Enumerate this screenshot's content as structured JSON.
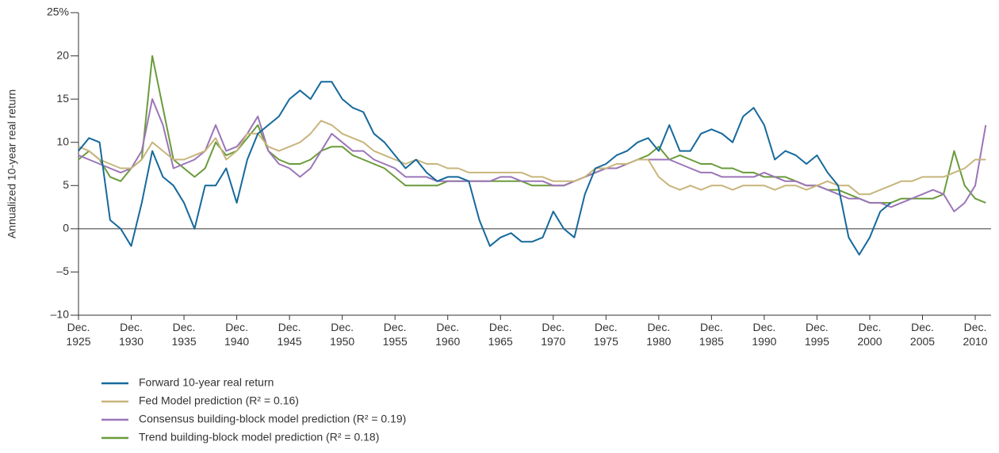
{
  "chart_data": {
    "type": "line",
    "y_label": "Annualized 10-year real return",
    "x": [
      1925,
      1926,
      1927,
      1928,
      1929,
      1930,
      1931,
      1932,
      1933,
      1934,
      1935,
      1936,
      1937,
      1938,
      1939,
      1940,
      1941,
      1942,
      1943,
      1944,
      1945,
      1946,
      1947,
      1948,
      1949,
      1950,
      1951,
      1952,
      1953,
      1954,
      1955,
      1956,
      1957,
      1958,
      1959,
      1960,
      1961,
      1962,
      1963,
      1964,
      1965,
      1966,
      1967,
      1968,
      1969,
      1970,
      1971,
      1972,
      1973,
      1974,
      1975,
      1976,
      1977,
      1978,
      1979,
      1980,
      1981,
      1982,
      1983,
      1984,
      1985,
      1986,
      1987,
      1988,
      1989,
      1990,
      1991,
      1992,
      1993,
      1994,
      1995,
      1996,
      1997,
      1998,
      1999,
      2000,
      2001,
      2002,
      2003,
      2004,
      2005,
      2006,
      2007,
      2008,
      2009,
      2010,
      2011
    ],
    "series": [
      {
        "name": "Forward 10-year real return",
        "color": "#16699b",
        "values": [
          9,
          10.5,
          10,
          1,
          0,
          -2,
          3,
          9,
          6,
          5,
          3,
          0,
          5,
          5,
          7,
          3,
          8,
          11,
          12,
          13,
          15,
          16,
          15,
          17,
          17,
          15,
          14,
          13.5,
          11,
          10,
          8.5,
          7,
          8,
          6.5,
          5.5,
          6,
          6,
          5.5,
          1,
          -2,
          -1,
          -0.5,
          -1.5,
          -1.5,
          -1,
          2,
          0,
          -1,
          4,
          7,
          7.5,
          8.5,
          9,
          10,
          10.5,
          9,
          12,
          9,
          9,
          11,
          11.5,
          11,
          10,
          13,
          14,
          12,
          8,
          9,
          8.5,
          7.5,
          8.5,
          6.5,
          5,
          -1,
          -3,
          -1,
          2,
          3,
          null,
          null,
          null,
          null,
          null,
          null,
          null,
          null,
          null
        ]
      },
      {
        "name": "Fed Model prediction (R² = 0.16)",
        "color": "#c8b57c",
        "values": [
          9.5,
          9,
          8,
          7.5,
          7,
          7,
          8,
          10,
          9,
          8,
          8,
          8.5,
          9,
          10.5,
          8,
          9,
          11,
          11,
          9.5,
          9,
          9.5,
          10,
          11,
          12.5,
          12,
          11,
          10.5,
          10,
          9,
          8.5,
          8,
          7.5,
          8,
          7.5,
          7.5,
          7,
          7,
          6.5,
          6.5,
          6.5,
          6.5,
          6.5,
          6.5,
          6,
          6,
          5.5,
          5.5,
          5.5,
          6,
          7,
          7,
          7.5,
          7.5,
          8,
          8,
          6,
          5,
          4.5,
          5,
          4.5,
          5,
          5,
          4.5,
          5,
          5,
          5,
          4.5,
          5,
          5,
          4.5,
          5,
          5.5,
          5,
          5,
          4,
          4,
          4.5,
          5,
          5.5,
          5.5,
          6,
          6,
          6,
          6.5,
          7,
          8,
          8
        ]
      },
      {
        "name": "Consensus building-block model prediction (R² = 0.19)",
        "color": "#9c75b8",
        "values": [
          8.5,
          8,
          7.5,
          7,
          6.5,
          7,
          9,
          15,
          12,
          7,
          7.5,
          8,
          9,
          12,
          9,
          9.5,
          11,
          13,
          9,
          7.5,
          7,
          6,
          7,
          9,
          11,
          10,
          9,
          9,
          8,
          7.5,
          7,
          6,
          6,
          6,
          5.5,
          5.5,
          5.5,
          5.5,
          5.5,
          5.5,
          6,
          6,
          5.5,
          5.5,
          5.5,
          5,
          5,
          5.5,
          6,
          6.5,
          7,
          7,
          7.5,
          8,
          8,
          8,
          8,
          7.5,
          7,
          6.5,
          6.5,
          6,
          6,
          6,
          6,
          6.5,
          6,
          5.5,
          5.5,
          5,
          5,
          4.5,
          4,
          3.5,
          3.5,
          3,
          3,
          2.5,
          3,
          3.5,
          4,
          4.5,
          4,
          2,
          3,
          5,
          12
        ]
      },
      {
        "name": "Trend building-block model prediction (R² = 0.18)",
        "color": "#6a9b3b",
        "values": [
          8,
          9,
          8,
          6,
          5.5,
          7,
          8,
          20,
          14,
          8,
          7,
          6,
          7,
          10,
          8.5,
          9,
          10.5,
          12,
          9,
          8,
          7.5,
          7.5,
          8,
          9,
          9.5,
          9.5,
          8.5,
          8,
          7.5,
          7,
          6,
          5,
          5,
          5,
          5,
          5.5,
          5.5,
          5.5,
          5.5,
          5.5,
          5.5,
          5.5,
          5.5,
          5,
          5,
          5,
          5,
          5.5,
          6,
          6.5,
          7,
          7,
          7.5,
          8,
          8.5,
          9.5,
          8,
          8.5,
          8,
          7.5,
          7.5,
          7,
          7,
          6.5,
          6.5,
          6,
          6,
          6,
          5.5,
          5,
          5,
          4.5,
          4.5,
          4,
          3.5,
          3,
          3,
          3,
          3.5,
          3.5,
          3.5,
          3.5,
          4,
          9,
          5,
          3.5,
          3
        ]
      }
    ],
    "xlim": [
      1925,
      2011.5
    ],
    "xticks": [
      {
        "value": 1925,
        "label": "Dec. 1925"
      },
      {
        "value": 1930,
        "label": "Dec. 1930"
      },
      {
        "value": 1935,
        "label": "Dec. 1935"
      },
      {
        "value": 1940,
        "label": "Dec. 1940"
      },
      {
        "value": 1945,
        "label": "Dec. 1945"
      },
      {
        "value": 1950,
        "label": "Dec. 1950"
      },
      {
        "value": 1955,
        "label": "Dec. 1955"
      },
      {
        "value": 1960,
        "label": "Dec. 1960"
      },
      {
        "value": 1965,
        "label": "Dec. 1965"
      },
      {
        "value": 1970,
        "label": "Dec. 1970"
      },
      {
        "value": 1975,
        "label": "Dec. 1975"
      },
      {
        "value": 1980,
        "label": "Dec. 1980"
      },
      {
        "value": 1985,
        "label": "Dec. 1985"
      },
      {
        "value": 1990,
        "label": "Dec. 1990"
      },
      {
        "value": 1995,
        "label": "Dec. 1995"
      },
      {
        "value": 2000,
        "label": "Dec. 2000"
      },
      {
        "value": 2005,
        "label": "Dec. 2005"
      },
      {
        "value": 2010,
        "label": "Dec. 2010"
      }
    ],
    "ylim": [
      -10,
      25
    ],
    "yticks": [
      {
        "value": -10,
        "label": "–10"
      },
      {
        "value": -5,
        "label": "–5"
      },
      0,
      5,
      10,
      15,
      20,
      {
        "value": 25,
        "label": "25%"
      }
    ],
    "zero_line": true
  }
}
